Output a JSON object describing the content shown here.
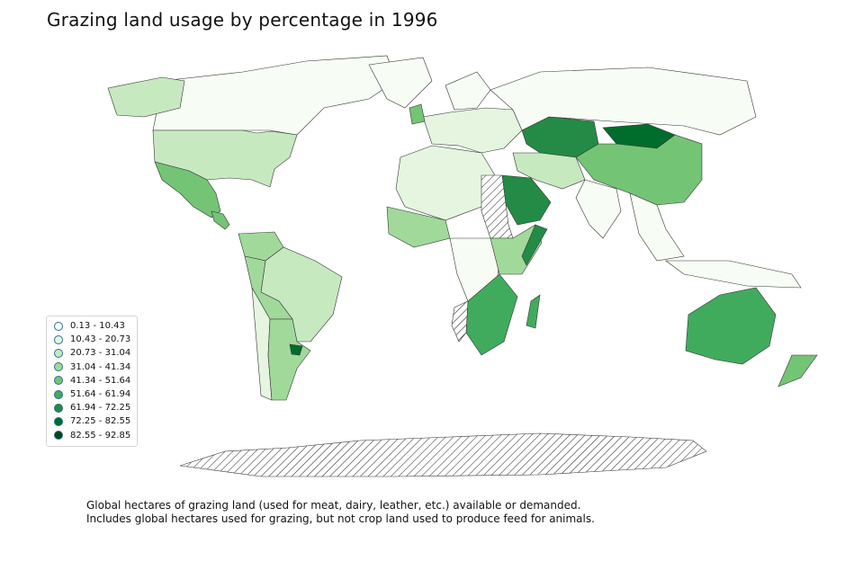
{
  "title": "Grazing land usage by percentage in 1996",
  "caption": {
    "line1": "Global hectares of grazing land (used for meat, dairy, leather, etc.) available or demanded.",
    "line2": "Includes global hectares used for grazing, but not crop land used to produce feed for animals."
  },
  "legend": {
    "placement": "lower-left",
    "items": [
      {
        "label": "0.13 - 10.43",
        "color": "#f7fcf5"
      },
      {
        "label": "10.43 - 20.73",
        "color": "#e5f5e0"
      },
      {
        "label": "20.73 - 31.04",
        "color": "#c7e9c0"
      },
      {
        "label": "31.04 - 41.34",
        "color": "#a1d99b"
      },
      {
        "label": "41.34 - 51.64",
        "color": "#74c476"
      },
      {
        "label": "51.64 - 61.94",
        "color": "#41ab5d"
      },
      {
        "label": "61.94 - 72.25",
        "color": "#238b45"
      },
      {
        "label": "72.25 - 82.55",
        "color": "#006d2c"
      },
      {
        "label": "82.55 - 92.85",
        "color": "#00441b"
      }
    ]
  },
  "no_data_style": "hatched"
}
